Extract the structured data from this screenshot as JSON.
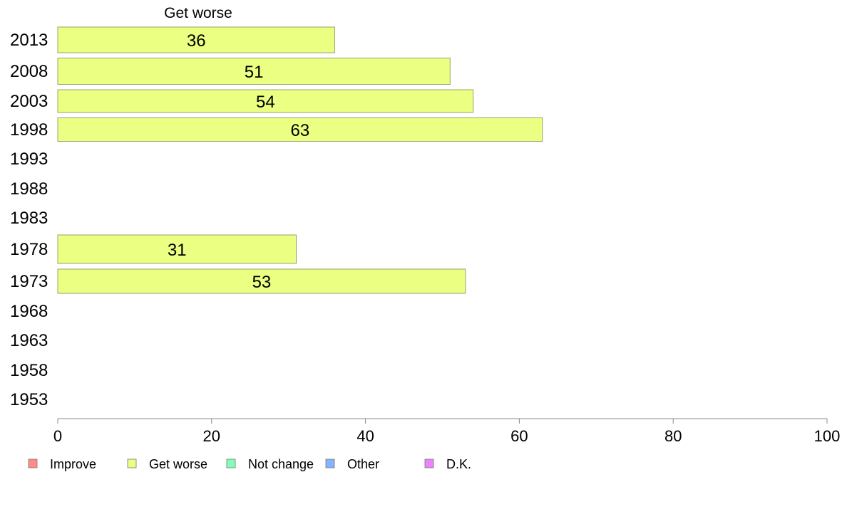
{
  "chart_data": {
    "type": "bar",
    "orientation": "horizontal",
    "column_title": "Get worse",
    "categories": [
      "2013",
      "2008",
      "2003",
      "1998",
      "1993",
      "1988",
      "1983",
      "1978",
      "1973",
      "1968",
      "1963",
      "1958",
      "1953"
    ],
    "series": [
      {
        "name": "Get worse",
        "color": "#ebff82",
        "values": [
          36,
          51,
          54,
          63,
          null,
          null,
          null,
          31,
          53,
          null,
          null,
          null,
          null
        ]
      }
    ],
    "xlim": [
      0,
      100
    ],
    "x_ticks": [
      0,
      20,
      40,
      60,
      80,
      100
    ],
    "grid": false,
    "legend": {
      "placement": "bottom",
      "items": [
        {
          "label": "Improve",
          "color": "#ff8c82"
        },
        {
          "label": "Get worse",
          "color": "#ebff82"
        },
        {
          "label": "Not change",
          "color": "#82ffb4"
        },
        {
          "label": "Other",
          "color": "#82b4ff"
        },
        {
          "label": "D.K.",
          "color": "#eb82ff"
        }
      ]
    }
  }
}
